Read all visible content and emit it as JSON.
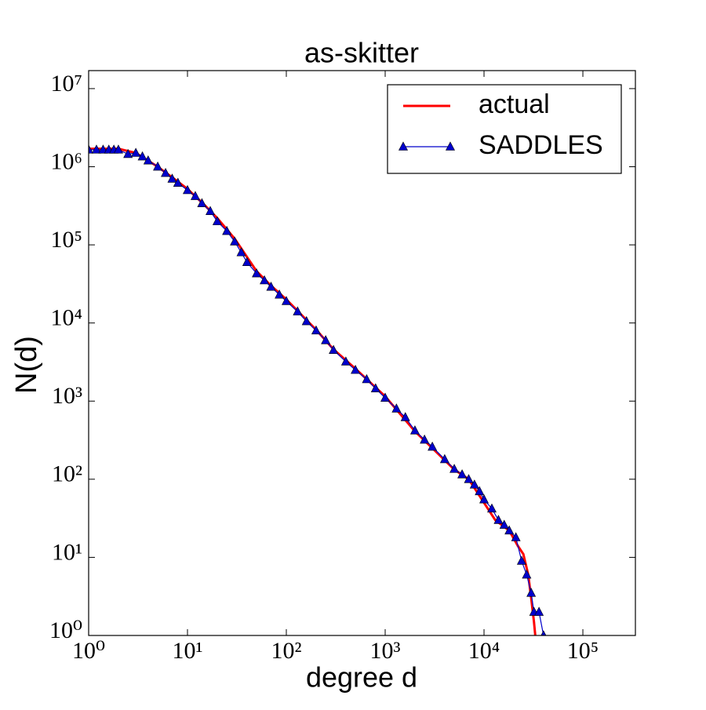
{
  "chart_data": {
    "type": "line",
    "title": "as-skitter",
    "x_label": "degree d",
    "y_label": "N(d)",
    "xscale": "log",
    "yscale": "log",
    "xlim": [
      1,
      340000
    ],
    "ylim": [
      1,
      17000000
    ],
    "xticks": [
      {
        "value": 1,
        "label": "10⁰"
      },
      {
        "value": 10,
        "label": "10¹"
      },
      {
        "value": 100,
        "label": "10²"
      },
      {
        "value": 1000,
        "label": "10³"
      },
      {
        "value": 10000,
        "label": "10⁴"
      },
      {
        "value": 100000,
        "label": "10⁵"
      }
    ],
    "yticks": [
      {
        "value": 1,
        "label": "10⁰"
      },
      {
        "value": 10,
        "label": "10¹"
      },
      {
        "value": 100,
        "label": "10²"
      },
      {
        "value": 1000,
        "label": "10³"
      },
      {
        "value": 10000,
        "label": "10⁴"
      },
      {
        "value": 100000,
        "label": "10⁵"
      },
      {
        "value": 1000000,
        "label": "10⁶"
      },
      {
        "value": 10000000,
        "label": "10⁷"
      }
    ],
    "legend": "upper right",
    "series": [
      {
        "name": "actual",
        "color": "#ff0000",
        "marker": "none",
        "x": [
          1,
          2,
          3,
          5,
          7,
          10,
          15,
          20,
          30,
          50,
          70,
          100,
          200,
          300,
          500,
          1000,
          2000,
          3000,
          5000,
          7000,
          10000,
          13000,
          18000,
          22000,
          25000,
          28000,
          30000,
          32000,
          33000
        ],
        "values": [
          1700000,
          1700000,
          1500000,
          1000000,
          730000,
          520000,
          320000,
          220000,
          120000,
          46000,
          30000,
          20000,
          8200,
          4600,
          2600,
          1150,
          410,
          250,
          133,
          100,
          50,
          30,
          22,
          14,
          11,
          6,
          3,
          1.5,
          1
        ]
      },
      {
        "name": "SADDLES",
        "color": "#0000cc",
        "marker": "triangle",
        "x": [
          1,
          1.2,
          1.4,
          1.6,
          1.8,
          2,
          2.5,
          3,
          3.5,
          4,
          5,
          6,
          7,
          8,
          10,
          12,
          14,
          17,
          20,
          25,
          30,
          35,
          40,
          50,
          60,
          70,
          85,
          100,
          130,
          160,
          200,
          250,
          300,
          400,
          500,
          650,
          800,
          1000,
          1300,
          1600,
          2000,
          2500,
          3000,
          4000,
          5000,
          6000,
          7000,
          8000,
          9000,
          10000,
          12000,
          14000,
          16000,
          18000,
          21000,
          24000,
          27000,
          30000,
          32000,
          36000,
          40000
        ],
        "values": [
          1650000,
          1650000,
          1650000,
          1650000,
          1650000,
          1650000,
          1450000,
          1500000,
          1350000,
          1200000,
          1000000,
          830000,
          700000,
          620000,
          500000,
          420000,
          340000,
          270000,
          200000,
          150000,
          110000,
          80000,
          60000,
          43000,
          35000,
          29000,
          23000,
          19000,
          14000,
          10500,
          8000,
          6000,
          4500,
          3200,
          2500,
          1900,
          1450,
          1100,
          800,
          620,
          420,
          320,
          260,
          180,
          135,
          115,
          100,
          85,
          70,
          55,
          42,
          30,
          26,
          22,
          18,
          9,
          6,
          3.5,
          2,
          2,
          1
        ]
      }
    ]
  }
}
